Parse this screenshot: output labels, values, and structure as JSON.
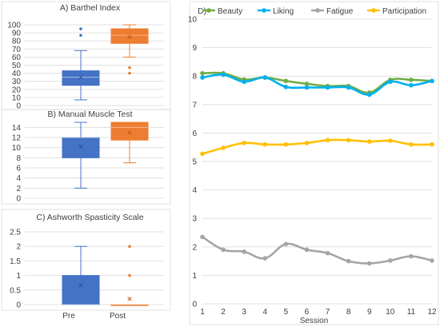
{
  "colors": {
    "pre": "#4472c4",
    "post": "#ed7d31",
    "beauty": "#70ad47",
    "liking": "#00b0f0",
    "fatigue": "#a5a5a5",
    "participation": "#ffc000"
  },
  "chart_data": [
    {
      "type": "box",
      "title": "A) Barthel Index",
      "categories": [
        "Pre",
        "Post"
      ],
      "ylim": [
        0,
        100
      ],
      "yticks": [
        0,
        10,
        20,
        30,
        40,
        50,
        60,
        70,
        80,
        90,
        100
      ],
      "series": [
        {
          "min": 7,
          "q1": 25,
          "median": 35,
          "q3": 43,
          "max": 68,
          "mean": 35,
          "outliers": [
            87,
            95
          ]
        },
        {
          "min": 60,
          "q1": 77,
          "median": 87,
          "q3": 95,
          "max": 100,
          "mean": 85,
          "outliers": [
            40,
            47
          ]
        }
      ]
    },
    {
      "type": "box",
      "title": "B) Manual Muscle Test",
      "categories": [
        "Pre",
        "Post"
      ],
      "ylim": [
        0,
        15
      ],
      "yticks": [
        0,
        2,
        4,
        6,
        8,
        10,
        12,
        14
      ],
      "series": [
        {
          "min": 2,
          "q1": 8,
          "median": 12,
          "q3": 12,
          "max": 15,
          "mean": 10.2,
          "outliers": []
        },
        {
          "min": 7,
          "q1": 11.5,
          "median": 14,
          "q3": 15,
          "max": 15,
          "mean": 13,
          "outliers": []
        }
      ]
    },
    {
      "type": "box",
      "title": "C) Ashworth Spasticity Scale",
      "categories": [
        "Pre",
        "Post"
      ],
      "ylim": [
        0,
        2.5
      ],
      "yticks": [
        "0",
        "0.5",
        "1",
        "1.5",
        "2",
        "2.5"
      ],
      "series": [
        {
          "min": 0,
          "q1": 0,
          "median": 0,
          "q3": 1,
          "max": 2,
          "mean": 0.67,
          "outliers": []
        },
        {
          "min": 0,
          "q1": 0,
          "median": 0,
          "q3": 0,
          "max": 0,
          "mean": 0.2,
          "outliers": [
            1,
            2
          ]
        }
      ]
    },
    {
      "type": "line",
      "title": "D)",
      "xlabel": "Session",
      "x": [
        1,
        2,
        3,
        4,
        5,
        6,
        7,
        8,
        9,
        10,
        11,
        12
      ],
      "ylim": [
        0,
        10
      ],
      "yticks": [
        0,
        1,
        2,
        3,
        4,
        5,
        6,
        7,
        8,
        9,
        10
      ],
      "legend_position": "top",
      "series": [
        {
          "name": "Beauty",
          "color_key": "beauty",
          "values": [
            8.1,
            8.1,
            7.88,
            7.95,
            7.83,
            7.73,
            7.65,
            7.65,
            7.42,
            7.87,
            7.87,
            7.83
          ]
        },
        {
          "name": "Liking",
          "color_key": "liking",
          "values": [
            7.95,
            8.05,
            7.8,
            7.95,
            7.62,
            7.6,
            7.6,
            7.6,
            7.35,
            7.8,
            7.68,
            7.83
          ]
        },
        {
          "name": "Fatigue",
          "color_key": "fatigue",
          "values": [
            2.35,
            1.9,
            1.83,
            1.6,
            2.1,
            1.9,
            1.78,
            1.5,
            1.42,
            1.52,
            1.67,
            1.52
          ]
        },
        {
          "name": "Participation",
          "color_key": "participation",
          "values": [
            5.27,
            5.48,
            5.65,
            5.6,
            5.6,
            5.65,
            5.75,
            5.75,
            5.7,
            5.73,
            5.6,
            5.6
          ]
        }
      ]
    }
  ]
}
